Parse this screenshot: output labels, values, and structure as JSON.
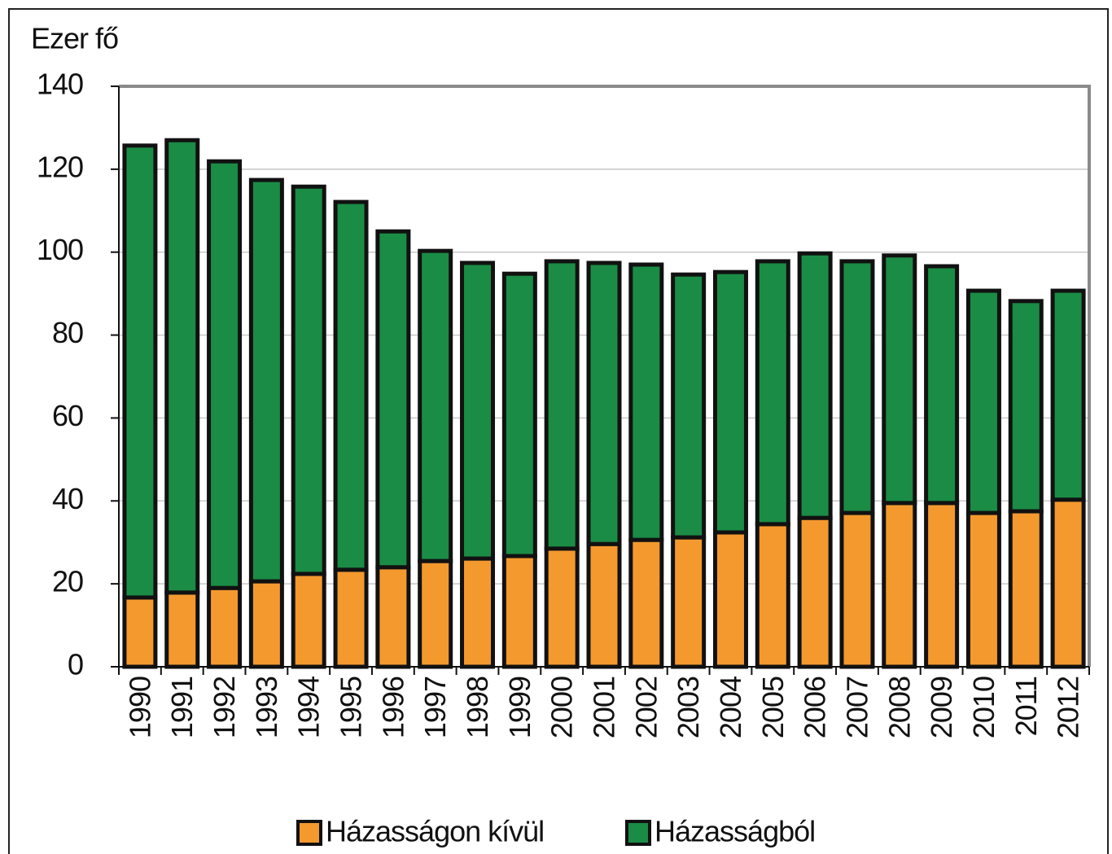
{
  "chart_data": {
    "type": "stacked_bar",
    "y_label": "Ezer fő",
    "categories": [
      "1990",
      "1991",
      "1992",
      "1993",
      "1994",
      "1995",
      "1996",
      "1997",
      "1998",
      "1999",
      "2000",
      "2001",
      "2002",
      "2003",
      "2004",
      "2005",
      "2006",
      "2007",
      "2008",
      "2009",
      "2010",
      "2011",
      "2012"
    ],
    "series": [
      {
        "name": "Házasságon kívül",
        "color": "#f4992e",
        "values": [
          16.7,
          17.9,
          19.0,
          20.6,
          22.4,
          23.4,
          24.0,
          25.5,
          26.1,
          26.7,
          28.5,
          29.6,
          30.6,
          31.2,
          32.4,
          34.4,
          35.9,
          37.1,
          39.5,
          39.5,
          37.1,
          37.5,
          40.3
        ]
      },
      {
        "name": "Házasságból",
        "color": "#1a8c45",
        "values": [
          109.0,
          109.1,
          102.9,
          96.8,
          93.4,
          88.7,
          81.0,
          74.8,
          71.3,
          68.1,
          69.3,
          67.8,
          66.4,
          63.4,
          62.8,
          63.4,
          63.8,
          60.7,
          59.7,
          57.1,
          53.6,
          50.7,
          50.4
        ]
      }
    ],
    "ylim": [
      0,
      140
    ],
    "yticks": [
      0,
      20,
      40,
      60,
      80,
      100,
      120,
      140
    ],
    "grid": true,
    "legend": "bottom"
  }
}
